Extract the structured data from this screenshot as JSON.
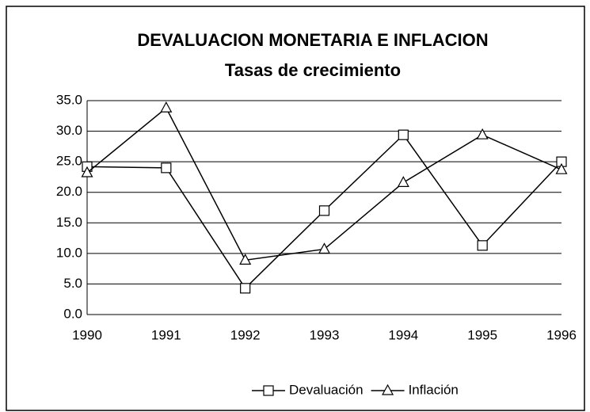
{
  "chart_data": {
    "type": "line",
    "title": "DEVALUACION MONETARIA E INFLACION",
    "subtitle": "Tasas de crecimiento",
    "categories": [
      "1990",
      "1991",
      "1992",
      "1993",
      "1994",
      "1995",
      "1996"
    ],
    "series": [
      {
        "name": "Devaluación",
        "color": "#000000",
        "marker": "square",
        "values": [
          24.2,
          24.0,
          4.3,
          17.0,
          29.4,
          11.3,
          25.0
        ]
      },
      {
        "name": "Inflación",
        "color": "#000000",
        "marker": "triangle",
        "values": [
          23.2,
          33.8,
          8.9,
          10.7,
          21.6,
          29.4,
          23.7
        ]
      }
    ],
    "ylim": [
      0,
      35
    ],
    "yticks": [
      {
        "value": 0,
        "label": "0.0"
      },
      {
        "value": 5,
        "label": "5.0"
      },
      {
        "value": 10,
        "label": "10.0"
      },
      {
        "value": 15,
        "label": "15.0"
      },
      {
        "value": 20,
        "label": "20.0"
      },
      {
        "value": 25,
        "label": "25.0"
      },
      {
        "value": 30,
        "label": "30.0"
      },
      {
        "value": 35,
        "label": "35.0"
      }
    ],
    "grid": true,
    "legend": "bottom"
  }
}
